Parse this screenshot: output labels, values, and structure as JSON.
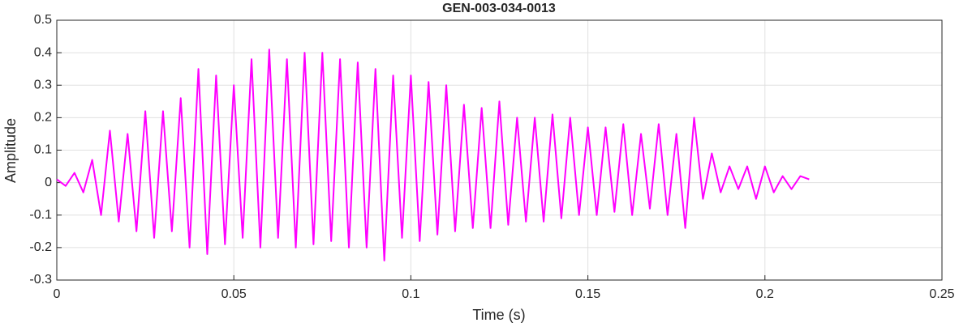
{
  "chart_data": {
    "type": "line",
    "title": "GEN-003-034-0013",
    "xlabel": "Time (s)",
    "ylabel": "Amplitude",
    "x": [
      0,
      0.0025,
      0.005,
      0.0075,
      0.01,
      0.0125,
      0.015,
      0.0175,
      0.02,
      0.0225,
      0.025,
      0.0275,
      0.03,
      0.0325,
      0.035,
      0.0375,
      0.04,
      0.0425,
      0.045,
      0.0475,
      0.05,
      0.0525,
      0.055,
      0.0575,
      0.06,
      0.0625,
      0.065,
      0.0675,
      0.07,
      0.0725,
      0.075,
      0.0775,
      0.08,
      0.0825,
      0.085,
      0.0875,
      0.09,
      0.0925,
      0.095,
      0.0975,
      0.1,
      0.1025,
      0.105,
      0.1075,
      0.11,
      0.1125,
      0.115,
      0.1175,
      0.12,
      0.1225,
      0.125,
      0.1275,
      0.13,
      0.1325,
      0.135,
      0.1375,
      0.14,
      0.1425,
      0.145,
      0.1475,
      0.15,
      0.1525,
      0.155,
      0.1575,
      0.16,
      0.1625,
      0.165,
      0.1675,
      0.17,
      0.1725,
      0.175,
      0.1775,
      0.18,
      0.1825,
      0.185,
      0.1875,
      0.19,
      0.1925,
      0.195,
      0.1975,
      0.2,
      0.2025,
      0.205,
      0.2075,
      0.21,
      0.2125
    ],
    "series": [
      {
        "color": "#ff00ff",
        "values": [
          0.01,
          -0.01,
          0.03,
          -0.03,
          0.07,
          -0.1,
          0.16,
          -0.12,
          0.15,
          -0.15,
          0.22,
          -0.17,
          0.22,
          -0.15,
          0.26,
          -0.2,
          0.35,
          -0.22,
          0.33,
          -0.19,
          0.3,
          -0.17,
          0.38,
          -0.2,
          0.41,
          -0.17,
          0.38,
          -0.2,
          0.4,
          -0.19,
          0.4,
          -0.18,
          0.38,
          -0.2,
          0.37,
          -0.2,
          0.35,
          -0.24,
          0.33,
          -0.17,
          0.33,
          -0.18,
          0.31,
          -0.16,
          0.3,
          -0.15,
          0.24,
          -0.14,
          0.23,
          -0.14,
          0.25,
          -0.13,
          0.2,
          -0.12,
          0.2,
          -0.12,
          0.21,
          -0.11,
          0.2,
          -0.1,
          0.17,
          -0.1,
          0.17,
          -0.09,
          0.18,
          -0.1,
          0.15,
          -0.08,
          0.18,
          -0.1,
          0.15,
          -0.14,
          0.2,
          -0.05,
          0.09,
          -0.03,
          0.05,
          -0.02,
          0.05,
          -0.05,
          0.05,
          -0.03,
          0.02,
          -0.02,
          0.02,
          0.01
        ]
      }
    ],
    "xlim": [
      0,
      0.25
    ],
    "xticks": [
      0,
      0.05,
      0.1,
      0.15,
      0.2,
      0.25
    ],
    "ylim": [
      -0.3,
      0.5
    ],
    "yticks": [
      -0.3,
      -0.2,
      -0.1,
      0,
      0.1,
      0.2,
      0.3,
      0.4,
      0.5
    ],
    "grid": true
  }
}
